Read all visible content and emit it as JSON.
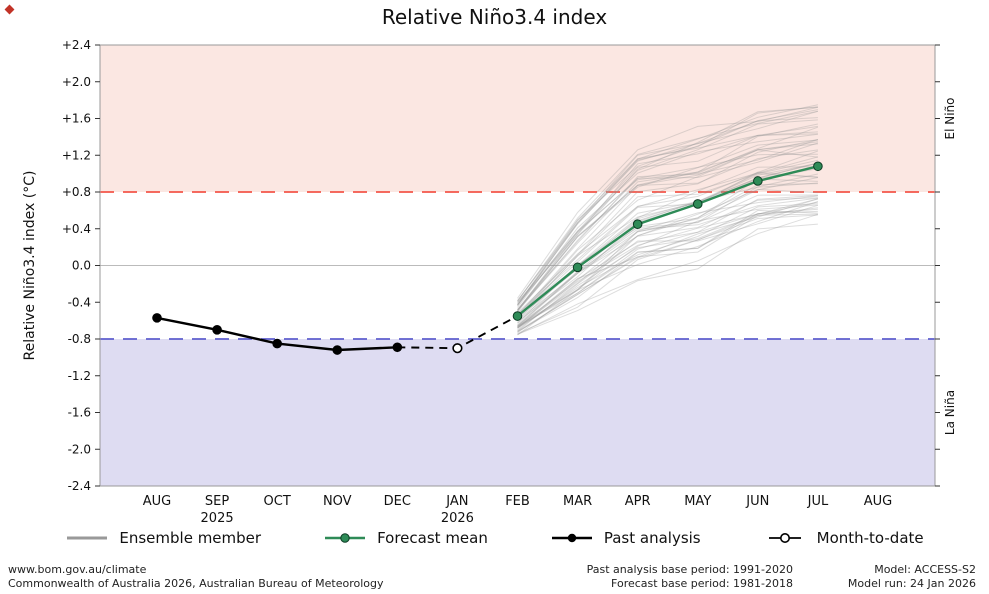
{
  "corner_mark_color": "#c23327",
  "chart_data": {
    "type": "line",
    "title": "Relative Niño3.4 index",
    "ylabel": "Relative Niño3.4 index (°C)",
    "ylim": [
      -2.4,
      2.4
    ],
    "y_tick_labels": [
      "+2.4",
      "+2.0",
      "+1.6",
      "+1.2",
      "+0.8",
      "+0.4",
      "0.0",
      "-0.4",
      "-0.8",
      "-1.2",
      "-1.6",
      "-2.0",
      "-2.4"
    ],
    "x_categories": [
      "AUG",
      "SEP",
      "OCT",
      "NOV",
      "DEC",
      "JAN",
      "FEB",
      "MAR",
      "APR",
      "MAY",
      "JUN",
      "JUL",
      "AUG"
    ],
    "x_year_labels": [
      {
        "index": 1,
        "label": "2025"
      },
      {
        "index": 5,
        "label": "2026"
      }
    ],
    "grid": false,
    "legend_position": "bottom",
    "colors": {
      "border": "#999999",
      "zero_line": "#bbbbbb",
      "tick": "#333333"
    },
    "bands": {
      "el_nino": {
        "label": "El Niño",
        "from": 0.8,
        "to": 2.4,
        "fill": "#fbe7e2",
        "line": "#f4564a",
        "label_color": "#d9776b"
      },
      "la_nina": {
        "label": "La Niña",
        "from": -0.8,
        "to": -2.4,
        "fill": "#dedcf2",
        "line": "#5f5fce",
        "label_color": "#8181cf"
      }
    },
    "thresholds": {
      "el_nino": 0.8,
      "zero": 0.0,
      "la_nina": -0.8
    },
    "series": [
      {
        "name": "Past analysis",
        "style": "solid-line-filled-markers",
        "color": "#000000",
        "x_index_start": 0,
        "months": [
          "AUG 2025",
          "SEP 2025",
          "OCT 2025",
          "NOV 2025",
          "DEC 2025"
        ],
        "values": [
          -0.57,
          -0.7,
          -0.85,
          -0.92,
          -0.89
        ]
      },
      {
        "name": "Month-to-date",
        "style": "open-marker-dashed-connector",
        "color": "#000000",
        "x_index": 5,
        "month": "JAN 2026",
        "value": -0.9
      },
      {
        "name": "Forecast mean",
        "style": "solid-line-filled-markers",
        "color": "#2e8b57",
        "x_index_start": 6,
        "months": [
          "FEB 2026",
          "MAR 2026",
          "APR 2026",
          "MAY 2026",
          "JUN 2026",
          "JUL 2026"
        ],
        "values": [
          -0.55,
          -0.02,
          0.45,
          0.67,
          0.92,
          1.08
        ]
      }
    ],
    "ensemble": {
      "name": "Ensemble member",
      "color": "#999999",
      "opacity": 0.33,
      "count": 60,
      "x_index_start": 6,
      "months": [
        "FEB 2026",
        "MAR 2026",
        "APR 2026",
        "MAY 2026",
        "JUN 2026",
        "JUL 2026"
      ],
      "spread_low": [
        -0.8,
        -0.48,
        -0.16,
        0.0,
        0.28,
        0.39
      ],
      "spread_high": [
        -0.38,
        0.5,
        1.26,
        1.42,
        1.64,
        1.72
      ]
    },
    "legend": {
      "items": [
        {
          "label": "Ensemble member",
          "swatch": "gray-line"
        },
        {
          "label": "Forecast mean",
          "swatch": "green-line-dot"
        },
        {
          "label": "Past analysis",
          "swatch": "black-line-dot"
        },
        {
          "label": "Month-to-date",
          "swatch": "open-dot"
        }
      ]
    }
  },
  "footer": {
    "left_line1": "www.bom.gov.au/climate",
    "left_line2": "Commonwealth of Australia 2026, Australian Bureau of Meteorology",
    "center_line1": "Past analysis base period: 1991-2020",
    "center_line2": "Forecast base period: 1981-2018",
    "right_line1": "Model: ACCESS-S2",
    "right_line2": "Model run: 24 Jan 2026"
  }
}
